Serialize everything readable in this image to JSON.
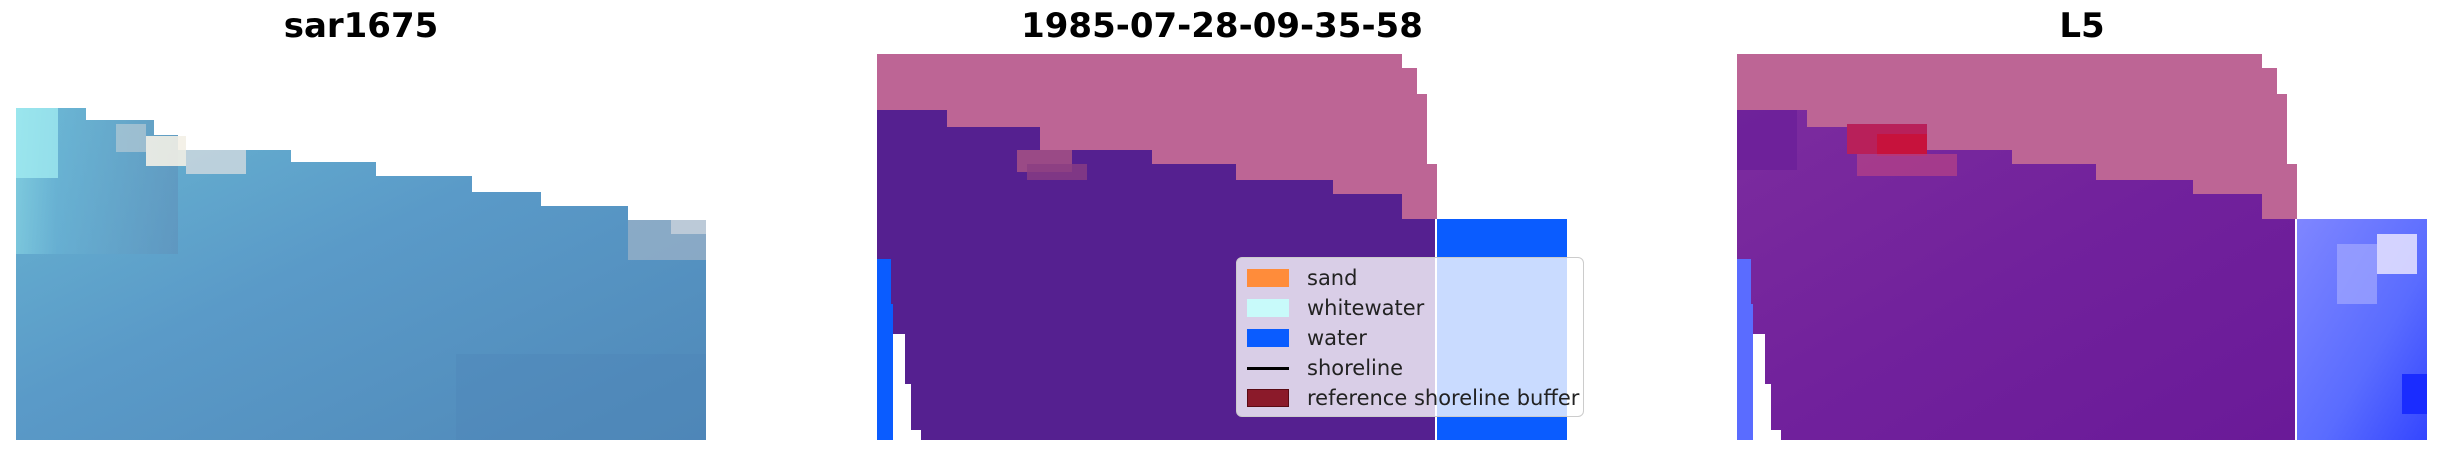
{
  "panels": [
    {
      "title": "sar1675"
    },
    {
      "title": "1985-07-28-09-35-58"
    },
    {
      "title": "L5"
    }
  ],
  "legend": {
    "items": [
      {
        "label": "sand",
        "kind": "patch",
        "color": "#ff8c3a"
      },
      {
        "label": "whitewater",
        "kind": "patch",
        "color": "#c8fafa"
      },
      {
        "label": "water",
        "kind": "patch",
        "color": "#0a5cff"
      },
      {
        "label": "shoreline",
        "kind": "line",
        "color": "#000000"
      },
      {
        "label": "reference shoreline buffer",
        "kind": "patch",
        "color": "#8b1a2a"
      }
    ]
  },
  "colors": {
    "rgb_water": "#5591c2",
    "rgb_whitewater": "#9eeef2",
    "classified_land": "#bd6595",
    "classified_water_buffer": "#552090",
    "water": "#0a5cff",
    "mndwi_purple": "#7a2a9e",
    "mndwi_red": "#c21436",
    "mndwi_blue": "#5a5cff"
  }
}
